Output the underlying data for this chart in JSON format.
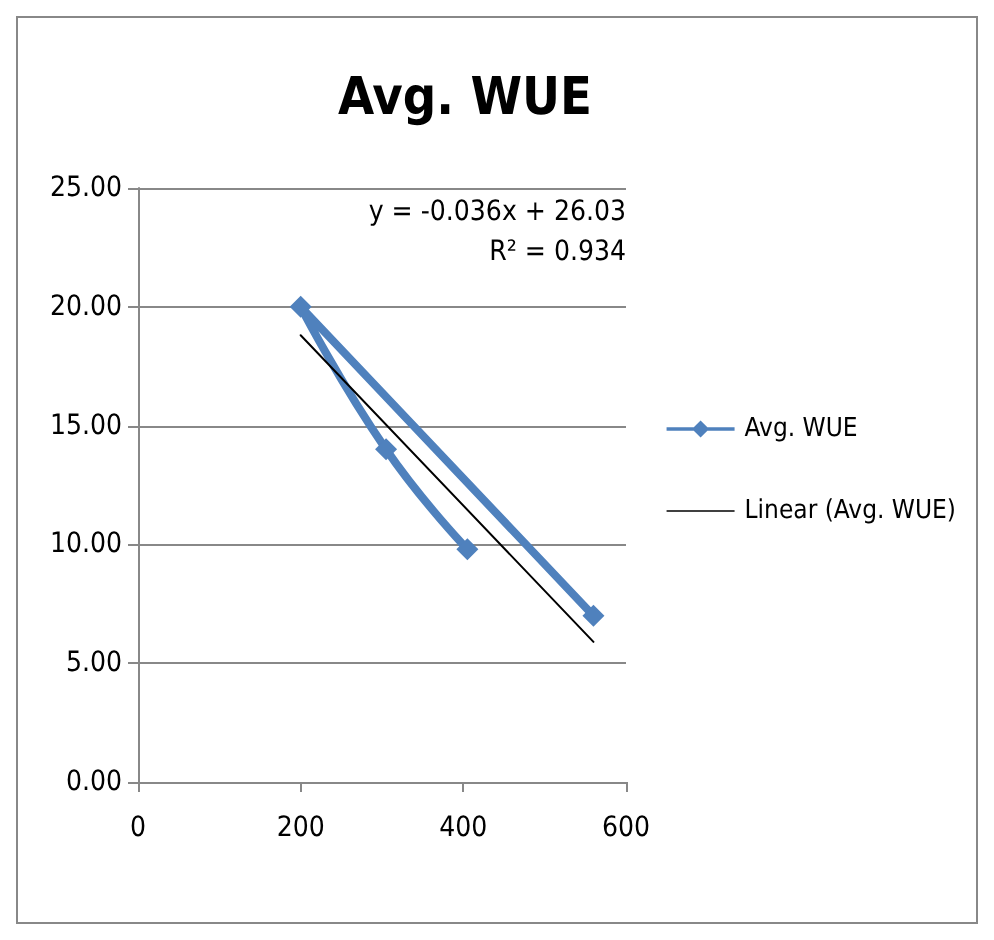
{
  "chart_data": {
    "type": "line",
    "title": "Avg. WUE",
    "series": [
      {
        "name": "Avg. WUE",
        "color": "#4f81bd",
        "x": [
          405,
          305,
          200,
          560
        ],
        "values": [
          9.8,
          14,
          20,
          7
        ],
        "marker": "diamond"
      },
      {
        "name": "Linear (Avg. WUE)",
        "color": "#000000",
        "x": [
          200,
          560
        ],
        "values": [
          18.8,
          5.9
        ],
        "marker": "none"
      }
    ],
    "xlim": [
      0,
      600
    ],
    "xticks": [
      0,
      200,
      400,
      600
    ],
    "ylim": [
      0,
      25
    ],
    "yticks": [
      {
        "value": 0,
        "label": "0.00"
      },
      {
        "value": 5,
        "label": "5.00"
      },
      {
        "value": 10,
        "label": "10.00"
      },
      {
        "value": 15,
        "label": "15.00"
      },
      {
        "value": 20,
        "label": "20.00"
      },
      {
        "value": 25,
        "label": "25.00"
      }
    ],
    "grid": "y",
    "legend": "right",
    "annotations": [
      "y = -0.036x + 26.03",
      "R² = 0.934"
    ]
  }
}
